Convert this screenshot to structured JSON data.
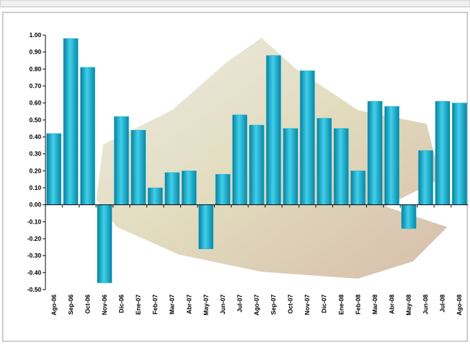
{
  "chart_data": {
    "type": "bar",
    "categories": [
      "Ago-06",
      "Sep-06",
      "Oct-06",
      "Nov-06",
      "Dic-06",
      "Ene-07",
      "Feb-07",
      "Mar-07",
      "Abr-07",
      "May-07",
      "Jun-07",
      "Jul-07",
      "Ago-07",
      "Sep-07",
      "Oct-07",
      "Nov-07",
      "Dic-07",
      "Ene-08",
      "Feb-08",
      "Mar-08",
      "Abr-08",
      "May-08",
      "Jun-08",
      "Jul-08",
      "Ago-08"
    ],
    "values": [
      0.42,
      0.98,
      0.81,
      -0.46,
      0.52,
      0.44,
      0.1,
      0.19,
      0.2,
      -0.26,
      0.18,
      0.53,
      0.47,
      0.88,
      0.45,
      0.79,
      0.51,
      0.45,
      0.2,
      0.61,
      0.58,
      -0.14,
      0.32,
      0.61,
      0.6
    ],
    "color": "#12b4d4",
    "ylim": [
      -0.5,
      1.0
    ],
    "yticks": [
      {
        "value": -0.5,
        "label": "-0.50"
      },
      {
        "value": -0.4,
        "label": "-0.40"
      },
      {
        "value": -0.3,
        "label": "-0.30"
      },
      {
        "value": -0.2,
        "label": "-0.20"
      },
      {
        "value": -0.1,
        "label": "-0.10"
      },
      {
        "value": 0,
        "label": "0.00"
      },
      {
        "value": 0.1,
        "label": "0.10"
      },
      {
        "value": 0.2,
        "label": "0.20"
      },
      {
        "value": 0.3,
        "label": "0.30"
      },
      {
        "value": 0.4,
        "label": "0.40"
      },
      {
        "value": 0.5,
        "label": "0.50"
      },
      {
        "value": 0.6,
        "label": "0.60"
      },
      {
        "value": 0.7,
        "label": "0.70"
      },
      {
        "value": 0.8,
        "label": "0.80"
      },
      {
        "value": 0.9,
        "label": "0.90"
      },
      {
        "value": 1.0,
        "label": "1.00"
      }
    ]
  }
}
